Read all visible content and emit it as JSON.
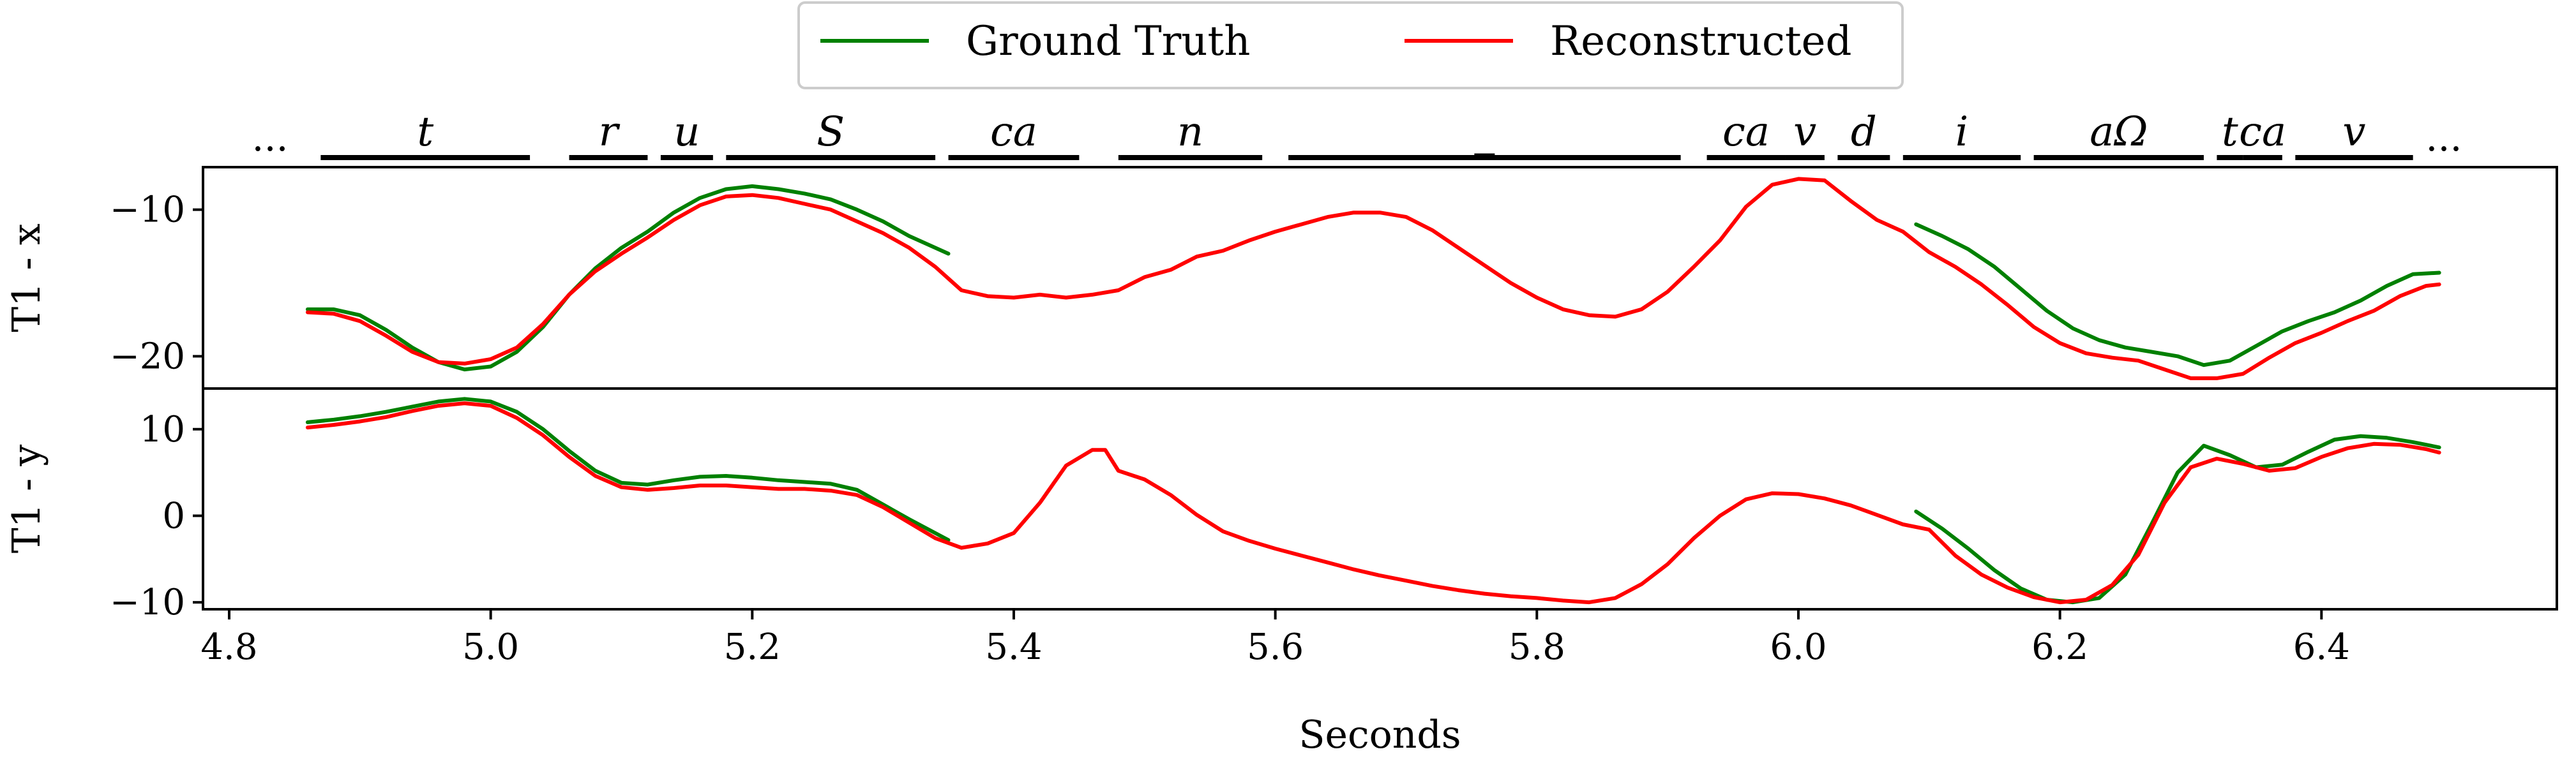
{
  "chart_data": {
    "type": "line",
    "xlabel": "Seconds",
    "xlim": [
      4.78,
      6.58
    ],
    "xticks": [
      4.8,
      5.0,
      5.2,
      5.4,
      5.6,
      5.8,
      6.0,
      6.2,
      6.4
    ],
    "xtick_labels": [
      "4.8",
      "5.0",
      "5.2",
      "5.4",
      "5.6",
      "5.8",
      "6.0",
      "6.2",
      "6.4"
    ],
    "legend": {
      "placement": "top-center",
      "entries": [
        {
          "name": "Ground Truth",
          "color": "#008000"
        },
        {
          "name": "Reconstructed",
          "color": "#ff0000"
        }
      ]
    },
    "phonemes": {
      "start_ellipsis": "...",
      "end_ellipsis": "...",
      "segments": [
        {
          "label": "t",
          "start": 4.87,
          "end": 5.03
        },
        {
          "label": "r",
          "start": 5.06,
          "end": 5.12
        },
        {
          "label": "u",
          "start": 5.13,
          "end": 5.17
        },
        {
          "label": "S",
          "start": 5.18,
          "end": 5.34
        },
        {
          "label": "ca",
          "start": 5.35,
          "end": 5.45
        },
        {
          "label": "n",
          "start": 5.48,
          "end": 5.59
        },
        {
          "label": "_",
          "start": 5.61,
          "end": 5.91
        },
        {
          "label": "ca",
          "start": 5.93,
          "end": 5.99
        },
        {
          "label": "v",
          "start": 5.99,
          "end": 6.02
        },
        {
          "label": "d",
          "start": 6.03,
          "end": 6.07
        },
        {
          "label": "i",
          "start": 6.08,
          "end": 6.17
        },
        {
          "label": "aΩ",
          "start": 6.18,
          "end": 6.31
        },
        {
          "label": "t",
          "start": 6.32,
          "end": 6.34
        },
        {
          "label": "ca",
          "start": 6.34,
          "end": 6.37
        },
        {
          "label": "v",
          "start": 6.38,
          "end": 6.47
        }
      ]
    },
    "panels": [
      {
        "ylabel": "T1 - x",
        "ylim": [
          -22.2,
          -7.1
        ],
        "yticks": [
          -10,
          -20
        ],
        "ytick_labels": [
          "−10",
          "−20"
        ],
        "series": [
          {
            "name": "Ground Truth",
            "color": "#008000",
            "segments": [
              {
                "x": [
                  4.86,
                  4.88,
                  4.9,
                  4.92,
                  4.94,
                  4.96,
                  4.98,
                  5.0,
                  5.02,
                  5.04,
                  5.06,
                  5.08,
                  5.1,
                  5.12,
                  5.14,
                  5.16,
                  5.18,
                  5.2,
                  5.22,
                  5.24,
                  5.26,
                  5.28,
                  5.3,
                  5.32,
                  5.35
                ],
                "y": [
                  -16.8,
                  -16.8,
                  -17.2,
                  -18.2,
                  -19.4,
                  -20.4,
                  -20.9,
                  -20.7,
                  -19.7,
                  -18.0,
                  -15.8,
                  -14.0,
                  -12.6,
                  -11.5,
                  -10.2,
                  -9.2,
                  -8.6,
                  -8.4,
                  -8.6,
                  -8.9,
                  -9.3,
                  -10.0,
                  -10.8,
                  -11.8,
                  -13.0
                ]
              },
              {
                "x": [
                  6.09,
                  6.11,
                  6.13,
                  6.15,
                  6.17,
                  6.19,
                  6.21,
                  6.23,
                  6.25,
                  6.27,
                  6.29,
                  6.31,
                  6.33,
                  6.35,
                  6.37,
                  6.39,
                  6.41,
                  6.43,
                  6.45,
                  6.47,
                  6.49
                ],
                "y": [
                  -11.0,
                  -11.8,
                  -12.7,
                  -13.9,
                  -15.4,
                  -16.9,
                  -18.1,
                  -18.9,
                  -19.4,
                  -19.7,
                  -20.0,
                  -20.6,
                  -20.3,
                  -19.3,
                  -18.3,
                  -17.6,
                  -17.0,
                  -16.2,
                  -15.2,
                  -14.4,
                  -14.3
                ]
              }
            ]
          },
          {
            "name": "Reconstructed",
            "color": "#ff0000",
            "segments": [
              {
                "x": [
                  4.86,
                  4.88,
                  4.9,
                  4.92,
                  4.94,
                  4.96,
                  4.98,
                  5.0,
                  5.02,
                  5.04,
                  5.06,
                  5.08,
                  5.1,
                  5.12,
                  5.14,
                  5.16,
                  5.18,
                  5.2,
                  5.22,
                  5.24,
                  5.26,
                  5.28,
                  5.3,
                  5.32,
                  5.34,
                  5.35,
                  5.36,
                  5.38,
                  5.4,
                  5.42,
                  5.44,
                  5.46,
                  5.48,
                  5.5,
                  5.52,
                  5.54,
                  5.56,
                  5.58,
                  5.6,
                  5.62,
                  5.64,
                  5.66,
                  5.68,
                  5.7,
                  5.72,
                  5.74,
                  5.76,
                  5.78,
                  5.8,
                  5.82,
                  5.84,
                  5.86,
                  5.88,
                  5.9,
                  5.92,
                  5.94,
                  5.96,
                  5.98,
                  6.0,
                  6.02,
                  6.04,
                  6.06,
                  6.08,
                  6.1,
                  6.12,
                  6.14,
                  6.16,
                  6.18,
                  6.2,
                  6.22,
                  6.24,
                  6.26,
                  6.28,
                  6.3,
                  6.32,
                  6.34,
                  6.36,
                  6.38,
                  6.4,
                  6.42,
                  6.44,
                  6.46,
                  6.48,
                  6.49
                ],
                "y": [
                  -17.0,
                  -17.1,
                  -17.6,
                  -18.6,
                  -19.7,
                  -20.4,
                  -20.5,
                  -20.2,
                  -19.4,
                  -17.8,
                  -15.8,
                  -14.2,
                  -13.0,
                  -11.9,
                  -10.7,
                  -9.7,
                  -9.1,
                  -9.0,
                  -9.2,
                  -9.6,
                  -10.0,
                  -10.8,
                  -11.6,
                  -12.6,
                  -13.9,
                  -14.7,
                  -15.5,
                  -15.9,
                  -16.0,
                  -15.8,
                  -16.0,
                  -15.8,
                  -15.5,
                  -14.6,
                  -14.1,
                  -13.2,
                  -12.8,
                  -12.1,
                  -11.5,
                  -11.0,
                  -10.5,
                  -10.2,
                  -10.2,
                  -10.5,
                  -11.4,
                  -12.6,
                  -13.8,
                  -15.0,
                  -16.0,
                  -16.8,
                  -17.2,
                  -17.3,
                  -16.8,
                  -15.6,
                  -13.9,
                  -12.1,
                  -9.8,
                  -8.3,
                  -7.9,
                  -8.0,
                  -9.4,
                  -10.7,
                  -11.5,
                  -12.9,
                  -13.9,
                  -15.1,
                  -16.5,
                  -18.0,
                  -19.1,
                  -19.8,
                  -20.1,
                  -20.3,
                  -20.9,
                  -21.5,
                  -21.5,
                  -21.2,
                  -20.1,
                  -19.1,
                  -18.4,
                  -17.6,
                  -16.9,
                  -15.9,
                  -15.2,
                  -15.1
                ]
              }
            ]
          }
        ]
      },
      {
        "ylabel": "T1 - y",
        "ylim": [
          -10.8,
          14.7
        ],
        "yticks": [
          10,
          0,
          -10
        ],
        "ytick_labels": [
          "10",
          "0",
          "−10"
        ],
        "series": [
          {
            "name": "Ground Truth",
            "color": "#008000",
            "segments": [
              {
                "x": [
                  4.86,
                  4.88,
                  4.9,
                  4.92,
                  4.94,
                  4.96,
                  4.98,
                  5.0,
                  5.02,
                  5.04,
                  5.06,
                  5.08,
                  5.1,
                  5.12,
                  5.14,
                  5.16,
                  5.18,
                  5.2,
                  5.22,
                  5.24,
                  5.26,
                  5.28,
                  5.3,
                  5.32,
                  5.35
                ],
                "y": [
                  10.8,
                  11.1,
                  11.5,
                  12.0,
                  12.6,
                  13.2,
                  13.5,
                  13.2,
                  12.0,
                  10.0,
                  7.5,
                  5.2,
                  3.8,
                  3.6,
                  4.1,
                  4.5,
                  4.6,
                  4.4,
                  4.1,
                  3.9,
                  3.7,
                  3.0,
                  1.3,
                  -0.4,
                  -2.8
                ]
              },
              {
                "x": [
                  6.09,
                  6.11,
                  6.13,
                  6.15,
                  6.17,
                  6.19,
                  6.21,
                  6.23,
                  6.25,
                  6.27,
                  6.29,
                  6.31,
                  6.33,
                  6.35,
                  6.37,
                  6.39,
                  6.41,
                  6.43,
                  6.45,
                  6.47,
                  6.49
                ],
                "y": [
                  0.5,
                  -1.5,
                  -3.8,
                  -6.3,
                  -8.4,
                  -9.7,
                  -10.0,
                  -9.5,
                  -6.8,
                  -1.0,
                  5.0,
                  8.1,
                  7.0,
                  5.6,
                  5.9,
                  7.4,
                  8.8,
                  9.2,
                  9.0,
                  8.5,
                  7.9
                ]
              }
            ]
          },
          {
            "name": "Reconstructed",
            "color": "#ff0000",
            "segments": [
              {
                "x": [
                  4.86,
                  4.88,
                  4.9,
                  4.92,
                  4.94,
                  4.96,
                  4.98,
                  5.0,
                  5.02,
                  5.04,
                  5.06,
                  5.08,
                  5.1,
                  5.12,
                  5.14,
                  5.16,
                  5.18,
                  5.2,
                  5.22,
                  5.24,
                  5.26,
                  5.28,
                  5.3,
                  5.32,
                  5.34,
                  5.36,
                  5.38,
                  5.4,
                  5.42,
                  5.44,
                  5.46,
                  5.47,
                  5.48,
                  5.5,
                  5.52,
                  5.54,
                  5.56,
                  5.58,
                  5.6,
                  5.62,
                  5.64,
                  5.66,
                  5.68,
                  5.7,
                  5.72,
                  5.74,
                  5.76,
                  5.78,
                  5.8,
                  5.82,
                  5.84,
                  5.86,
                  5.88,
                  5.9,
                  5.92,
                  5.94,
                  5.96,
                  5.98,
                  6.0,
                  6.02,
                  6.04,
                  6.06,
                  6.08,
                  6.1,
                  6.12,
                  6.14,
                  6.16,
                  6.18,
                  6.2,
                  6.22,
                  6.24,
                  6.26,
                  6.28,
                  6.3,
                  6.32,
                  6.34,
                  6.36,
                  6.38,
                  6.4,
                  6.42,
                  6.44,
                  6.46,
                  6.48,
                  6.49
                ],
                "y": [
                  10.2,
                  10.5,
                  10.9,
                  11.4,
                  12.1,
                  12.7,
                  13.0,
                  12.7,
                  11.3,
                  9.3,
                  6.8,
                  4.6,
                  3.3,
                  3.0,
                  3.2,
                  3.5,
                  3.5,
                  3.3,
                  3.1,
                  3.1,
                  2.9,
                  2.4,
                  1.0,
                  -0.8,
                  -2.6,
                  -3.7,
                  -3.2,
                  -2.0,
                  1.5,
                  5.8,
                  7.6,
                  7.6,
                  5.2,
                  4.2,
                  2.4,
                  0.1,
                  -1.8,
                  -2.9,
                  -3.8,
                  -4.6,
                  -5.4,
                  -6.2,
                  -6.9,
                  -7.5,
                  -8.1,
                  -8.6,
                  -9.0,
                  -9.3,
                  -9.5,
                  -9.8,
                  -10.0,
                  -9.5,
                  -7.9,
                  -5.6,
                  -2.6,
                  0.0,
                  1.9,
                  2.6,
                  2.5,
                  2.0,
                  1.2,
                  0.1,
                  -1.0,
                  -1.6,
                  -4.6,
                  -6.8,
                  -8.3,
                  -9.4,
                  -10.0,
                  -9.7,
                  -8.0,
                  -4.5,
                  1.5,
                  5.6,
                  6.6,
                  6.0,
                  5.2,
                  5.5,
                  6.8,
                  7.8,
                  8.3,
                  8.2,
                  7.7,
                  7.3
                ]
              }
            ]
          }
        ]
      }
    ]
  }
}
